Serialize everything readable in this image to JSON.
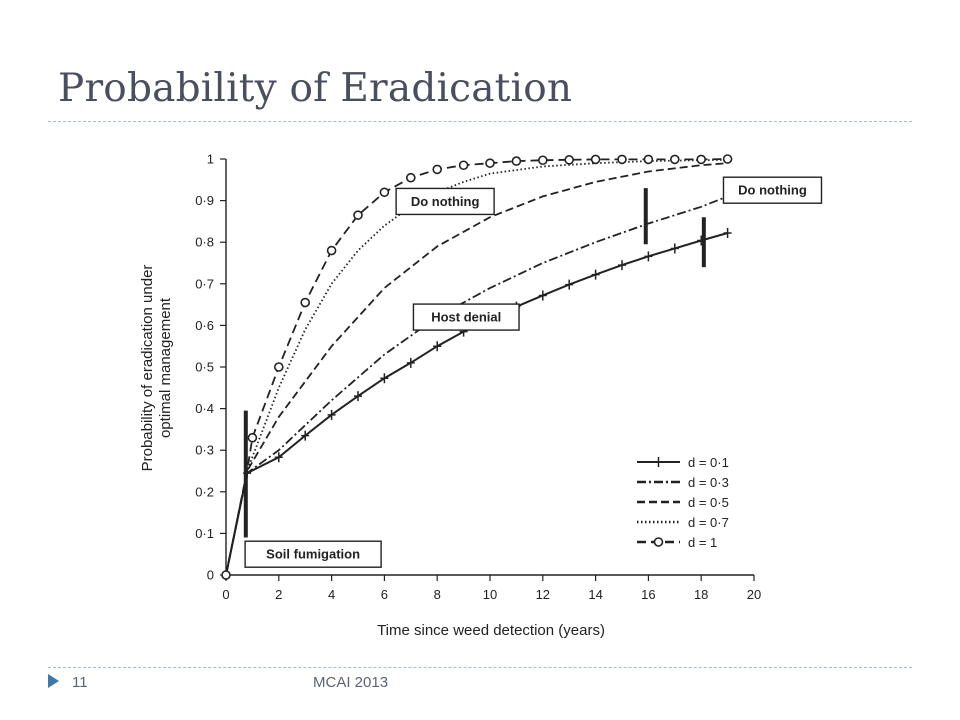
{
  "slide": {
    "title": "Probability of Eradication",
    "page_number": "11",
    "footer": "MCAI 2013"
  },
  "colors": {
    "title": "#4a4f5f",
    "rule": "#a9bccb",
    "marker": "#3e7aa9",
    "ink": "#222222"
  },
  "icons": {
    "footer_marker": "triangle-right-icon"
  },
  "chart_data": {
    "type": "line",
    "title": "",
    "xlabel": "Time since weed detection (years)",
    "ylabel_lines": [
      "Probability of eradication under",
      "optimal management"
    ],
    "xlim": [
      0,
      20
    ],
    "ylim": [
      0,
      1
    ],
    "x_ticks": [
      0,
      2,
      4,
      6,
      8,
      10,
      12,
      14,
      16,
      18,
      20
    ],
    "y_ticks": [
      0,
      0.1,
      0.2,
      0.3,
      0.4,
      0.5,
      0.6,
      0.7,
      0.8,
      0.9,
      1
    ],
    "y_tick_labels": [
      "0",
      "0·1",
      "0·2",
      "0·3",
      "0·4",
      "0·5",
      "0·6",
      "0·7",
      "0·8",
      "0·9",
      "1"
    ],
    "grid": false,
    "legend_position": "bottom-right",
    "series": [
      {
        "name": "d = 0·1",
        "style": "solid",
        "marker": "plus",
        "x": [
          0,
          0.8,
          2,
          3,
          4,
          5,
          6,
          7,
          8,
          9,
          10,
          11,
          12,
          13,
          14,
          15,
          16,
          17,
          18,
          19
        ],
        "y": [
          0,
          0.245,
          0.283,
          0.335,
          0.385,
          0.43,
          0.473,
          0.51,
          0.55,
          0.585,
          0.615,
          0.645,
          0.672,
          0.698,
          0.722,
          0.745,
          0.766,
          0.785,
          0.804,
          0.822
        ]
      },
      {
        "name": "d = 0·3",
        "style": "dashdot",
        "marker": "none",
        "x": [
          0,
          0.8,
          2,
          4,
          6,
          8,
          10,
          12,
          14,
          16,
          18,
          19
        ],
        "y": [
          0,
          0.245,
          0.3,
          0.42,
          0.53,
          0.62,
          0.69,
          0.75,
          0.8,
          0.845,
          0.885,
          0.91
        ]
      },
      {
        "name": "d = 0·5",
        "style": "dashed",
        "marker": "none",
        "x": [
          0,
          0.8,
          2,
          4,
          6,
          8,
          10,
          12,
          14,
          16,
          18,
          19
        ],
        "y": [
          0,
          0.25,
          0.38,
          0.55,
          0.69,
          0.79,
          0.86,
          0.91,
          0.945,
          0.97,
          0.985,
          0.99
        ]
      },
      {
        "name": "d = 0·7",
        "style": "dotted",
        "marker": "none",
        "x": [
          0,
          0.8,
          2,
          3,
          4,
          5,
          6,
          7,
          8,
          9,
          10,
          12,
          14,
          16,
          18,
          19
        ],
        "y": [
          0,
          0.25,
          0.45,
          0.59,
          0.7,
          0.78,
          0.84,
          0.885,
          0.92,
          0.945,
          0.965,
          0.982,
          0.99,
          0.995,
          0.997,
          0.998
        ]
      },
      {
        "name": "d = 1",
        "style": "longdash",
        "marker": "circle",
        "x": [
          0,
          0.8,
          1,
          2,
          3,
          4,
          5,
          6,
          7,
          8,
          9,
          10,
          11,
          12,
          13,
          14,
          15,
          16,
          17,
          18,
          19
        ],
        "y": [
          0,
          0.25,
          0.33,
          0.5,
          0.655,
          0.78,
          0.865,
          0.92,
          0.955,
          0.975,
          0.985,
          0.99,
          0.995,
          0.997,
          0.998,
          0.999,
          0.999,
          0.999,
          0.999,
          0.999,
          1.0
        ]
      }
    ],
    "vertical_bars": [
      {
        "x": 0.75,
        "y_from": 0.09,
        "y_to": 0.395
      },
      {
        "x": 15.9,
        "y_from": 0.795,
        "y_to": 0.93
      },
      {
        "x": 18.1,
        "y_from": 0.74,
        "y_to": 0.86
      }
    ],
    "annotations": [
      {
        "text": "Do nothing",
        "x": 8.3,
        "y": 0.898
      },
      {
        "text": "Do nothing",
        "x": 20.7,
        "y": 0.925
      },
      {
        "text": "Host denial",
        "x": 9.1,
        "y": 0.62
      },
      {
        "text": "Soil fumigation",
        "x": 3.3,
        "y": 0.05
      }
    ]
  }
}
